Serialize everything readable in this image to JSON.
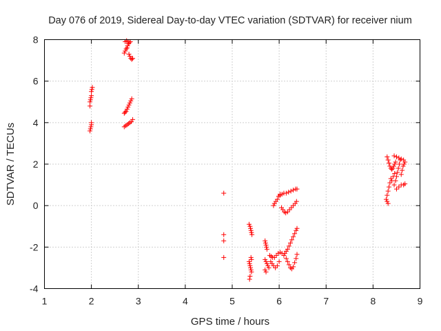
{
  "chart_data": {
    "type": "scatter",
    "title": "Day 076 of 2019, Sidereal Day-to-day VTEC variation (SDTVAR) for receiver nium",
    "xlabel": "GPS time / hours",
    "ylabel": "SDTVAR / TECUs",
    "xlim": [
      1,
      9
    ],
    "ylim": [
      -4,
      8
    ],
    "xticks": [
      "1",
      "2",
      "3",
      "4",
      "5",
      "6",
      "7",
      "8",
      "9"
    ],
    "yticks": [
      "-4",
      "-2",
      "0",
      "2",
      "4",
      "6",
      "8"
    ],
    "grid": true,
    "marker": "+",
    "colors": {
      "points": "#ff0000"
    },
    "series": [
      {
        "points": [
          [
            1.97,
            3.6
          ],
          [
            1.98,
            3.7
          ],
          [
            1.99,
            3.8
          ],
          [
            2.0,
            3.9
          ],
          [
            2.0,
            4.0
          ],
          [
            1.97,
            4.8
          ],
          [
            1.97,
            5.0
          ],
          [
            1.98,
            5.1
          ],
          [
            1.99,
            5.2
          ],
          [
            2.0,
            5.3
          ],
          [
            2.0,
            5.5
          ],
          [
            2.01,
            5.6
          ],
          [
            2.02,
            5.7
          ],
          [
            2.7,
            3.8
          ],
          [
            2.73,
            3.85
          ],
          [
            2.76,
            3.9
          ],
          [
            2.79,
            3.95
          ],
          [
            2.82,
            4.0
          ],
          [
            2.85,
            4.05
          ],
          [
            2.88,
            4.15
          ],
          [
            2.7,
            4.45
          ],
          [
            2.72,
            4.5
          ],
          [
            2.74,
            4.55
          ],
          [
            2.76,
            4.65
          ],
          [
            2.78,
            4.75
          ],
          [
            2.8,
            4.85
          ],
          [
            2.82,
            4.95
          ],
          [
            2.84,
            5.05
          ],
          [
            2.86,
            5.15
          ],
          [
            2.7,
            7.35
          ],
          [
            2.72,
            7.45
          ],
          [
            2.74,
            7.55
          ],
          [
            2.76,
            7.6
          ],
          [
            2.77,
            7.7
          ],
          [
            2.79,
            7.8
          ],
          [
            2.81,
            7.85
          ],
          [
            2.83,
            7.9
          ],
          [
            2.72,
            7.9
          ],
          [
            2.75,
            7.95
          ],
          [
            2.78,
            7.9
          ],
          [
            2.8,
            7.3
          ],
          [
            2.82,
            7.2
          ],
          [
            2.84,
            7.1
          ],
          [
            2.86,
            7.05
          ],
          [
            2.88,
            7.1
          ],
          [
            4.82,
            0.6
          ],
          [
            4.82,
            -1.4
          ],
          [
            4.82,
            -1.7
          ],
          [
            4.82,
            -2.5
          ],
          [
            5.36,
            -0.9
          ],
          [
            5.38,
            -1.0
          ],
          [
            5.39,
            -1.1
          ],
          [
            5.4,
            -1.2
          ],
          [
            5.41,
            -1.3
          ],
          [
            5.42,
            -1.4
          ],
          [
            5.36,
            -2.7
          ],
          [
            5.37,
            -2.8
          ],
          [
            5.38,
            -2.9
          ],
          [
            5.39,
            -3.0
          ],
          [
            5.4,
            -3.1
          ],
          [
            5.41,
            -3.2
          ],
          [
            5.38,
            -3.4
          ],
          [
            5.37,
            -3.55
          ],
          [
            5.4,
            -2.5
          ],
          [
            5.41,
            -2.6
          ],
          [
            5.7,
            -1.7
          ],
          [
            5.71,
            -1.8
          ],
          [
            5.72,
            -1.9
          ],
          [
            5.73,
            -2.0
          ],
          [
            5.74,
            -2.1
          ],
          [
            5.7,
            -2.6
          ],
          [
            5.72,
            -2.7
          ],
          [
            5.74,
            -2.8
          ],
          [
            5.76,
            -2.9
          ],
          [
            5.78,
            -3.0
          ],
          [
            5.7,
            -3.1
          ],
          [
            5.72,
            -3.2
          ],
          [
            5.8,
            -2.4
          ],
          [
            5.83,
            -2.45
          ],
          [
            5.86,
            -2.5
          ],
          [
            5.9,
            -2.5
          ],
          [
            5.94,
            -2.4
          ],
          [
            5.98,
            -2.3
          ],
          [
            6.02,
            -2.25
          ],
          [
            6.06,
            -2.3
          ],
          [
            6.1,
            -2.4
          ],
          [
            5.82,
            -2.7
          ],
          [
            5.85,
            -2.8
          ],
          [
            5.88,
            -2.9
          ],
          [
            5.92,
            -3.0
          ],
          [
            5.96,
            -2.9
          ],
          [
            6.0,
            -2.7
          ],
          [
            6.12,
            -2.3
          ],
          [
            6.15,
            -2.2
          ],
          [
            6.18,
            -2.1
          ],
          [
            6.21,
            -1.95
          ],
          [
            6.24,
            -1.8
          ],
          [
            6.27,
            -1.65
          ],
          [
            6.3,
            -1.5
          ],
          [
            6.33,
            -1.35
          ],
          [
            6.36,
            -1.2
          ],
          [
            6.38,
            -1.1
          ],
          [
            6.15,
            -2.55
          ],
          [
            6.18,
            -2.7
          ],
          [
            6.21,
            -2.85
          ],
          [
            6.24,
            -3.0
          ],
          [
            6.27,
            -3.05
          ],
          [
            6.3,
            -2.95
          ],
          [
            6.33,
            -2.75
          ],
          [
            6.36,
            -2.55
          ],
          [
            6.38,
            -2.35
          ],
          [
            5.88,
            0.0
          ],
          [
            5.9,
            0.1
          ],
          [
            5.93,
            0.2
          ],
          [
            5.96,
            0.3
          ],
          [
            5.99,
            0.45
          ],
          [
            6.02,
            0.55
          ],
          [
            6.02,
            0.5
          ],
          [
            6.06,
            0.55
          ],
          [
            6.1,
            0.6
          ],
          [
            6.15,
            0.6
          ],
          [
            6.2,
            0.65
          ],
          [
            6.25,
            0.7
          ],
          [
            6.3,
            0.75
          ],
          [
            6.35,
            0.8
          ],
          [
            6.38,
            0.8
          ],
          [
            6.05,
            -0.1
          ],
          [
            6.08,
            -0.2
          ],
          [
            6.11,
            -0.3
          ],
          [
            6.14,
            -0.35
          ],
          [
            6.18,
            -0.3
          ],
          [
            6.22,
            -0.2
          ],
          [
            6.26,
            -0.1
          ],
          [
            6.3,
            0.0
          ],
          [
            6.34,
            0.1
          ],
          [
            6.37,
            0.2
          ],
          [
            8.28,
            0.3
          ],
          [
            8.3,
            0.5
          ],
          [
            8.32,
            0.7
          ],
          [
            8.34,
            0.9
          ],
          [
            8.36,
            1.1
          ],
          [
            8.38,
            1.3
          ],
          [
            8.32,
            0.1
          ],
          [
            8.3,
            0.2
          ],
          [
            8.3,
            2.35
          ],
          [
            8.32,
            2.2
          ],
          [
            8.34,
            2.05
          ],
          [
            8.36,
            1.9
          ],
          [
            8.38,
            1.8
          ],
          [
            8.4,
            1.75
          ],
          [
            8.42,
            1.8
          ],
          [
            8.44,
            1.9
          ],
          [
            8.46,
            2.0
          ],
          [
            8.48,
            2.1
          ],
          [
            8.45,
            2.4
          ],
          [
            8.5,
            2.35
          ],
          [
            8.55,
            2.3
          ],
          [
            8.6,
            2.25
          ],
          [
            8.65,
            2.2
          ],
          [
            8.68,
            2.1
          ],
          [
            8.45,
            1.0
          ],
          [
            8.48,
            1.2
          ],
          [
            8.5,
            1.4
          ],
          [
            8.52,
            1.6
          ],
          [
            8.54,
            1.8
          ],
          [
            8.56,
            2.0
          ],
          [
            8.58,
            2.2
          ],
          [
            8.5,
            0.8
          ],
          [
            8.55,
            0.9
          ],
          [
            8.6,
            1.0
          ],
          [
            8.65,
            1.0
          ],
          [
            8.68,
            1.05
          ],
          [
            8.4,
            1.2
          ],
          [
            8.43,
            1.4
          ],
          [
            8.46,
            1.55
          ],
          [
            8.6,
            1.5
          ],
          [
            8.62,
            1.7
          ],
          [
            8.64,
            1.9
          ],
          [
            8.66,
            2.0
          ]
        ]
      }
    ]
  }
}
